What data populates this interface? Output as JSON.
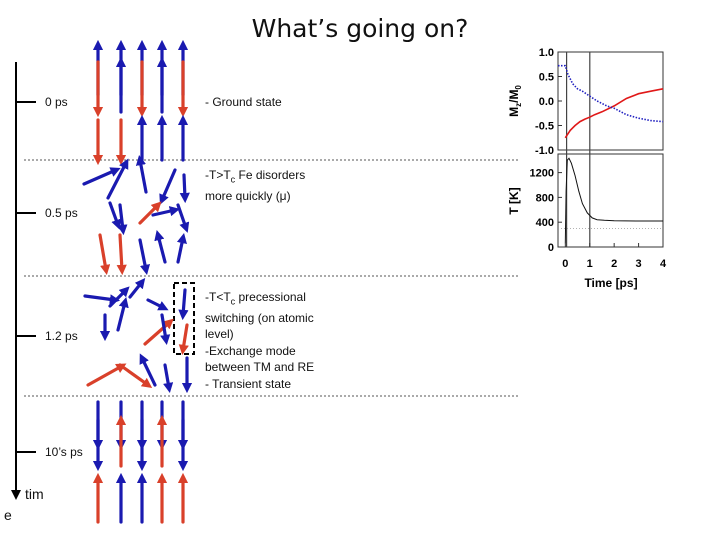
{
  "title": "What’s going on?",
  "timeline": {
    "labels": [
      "0 ps",
      "0.5 ps",
      "1.2 ps",
      "10’s ps"
    ],
    "axis_label_a": "tim",
    "axis_label_b": "e"
  },
  "notes": {
    "ground": "- Ground state",
    "disorder_line1": "-T>T",
    "disorder_sub": "c",
    "disorder_line1_rest": " Fe disorders",
    "disorder_line2": "more quickly (μ)",
    "precess_line1": "-T<T",
    "precess_sub": "c",
    "precess_line1_rest": " precessional",
    "precess_lines": [
      "switching  (on atomic",
      "level)",
      "-Exchange mode",
      "between TM and RE",
      "- Transient state"
    ]
  },
  "colors": {
    "tm_blue": "#1a1ab0",
    "re_red": "#d9402a",
    "mz_red": "#e01818",
    "mz_blue": "#2020c0"
  },
  "chart_data": {
    "type": "line",
    "xlabel": "Time [ps]",
    "x_ticks": [
      "0",
      "1",
      "2",
      "3",
      "4"
    ],
    "xlim": [
      -0.3,
      4
    ],
    "panels": [
      {
        "ylabel_main": "M",
        "ylabel_sub1": "z",
        "ylabel_mid": "/M",
        "ylabel_sub2": "0",
        "y_ticks": [
          "1.0",
          "0.5",
          "0.0",
          "-0.5",
          "-1.0"
        ],
        "ylim": [
          -1.0,
          1.0
        ],
        "series": [
          {
            "color": "red",
            "style": "solid",
            "x": [
              0,
              0.2,
              0.4,
              0.6,
              0.8,
              1.0,
              1.2,
              1.5,
              2.0,
              2.5,
              3.0,
              3.5,
              4.0
            ],
            "values": [
              -0.75,
              -0.6,
              -0.5,
              -0.42,
              -0.37,
              -0.33,
              -0.28,
              -0.22,
              -0.1,
              0.05,
              0.15,
              0.2,
              0.25
            ]
          },
          {
            "color": "blue",
            "style": "dotted",
            "x": [
              -0.3,
              0,
              0.1,
              0.3,
              0.5,
              0.7,
              1.0,
              1.3,
              1.7,
              2.0,
              2.5,
              3.0,
              3.5,
              4.0
            ],
            "values": [
              0.72,
              0.72,
              0.55,
              0.35,
              0.25,
              0.2,
              0.1,
              0.0,
              -0.1,
              -0.15,
              -0.28,
              -0.35,
              -0.4,
              -0.42
            ]
          }
        ]
      },
      {
        "ylabel_main": "T [K]",
        "y_ticks": [
          "1200",
          "800",
          "400",
          "0"
        ],
        "ylim": [
          0,
          1500
        ],
        "series": [
          {
            "color": "black",
            "style": "solid",
            "x": [
              0,
              0.03,
              0.08,
              0.15,
              0.25,
              0.4,
              0.55,
              0.7,
              0.9,
              1.1,
              1.3,
              1.6,
              2.0,
              3.0,
              4.0
            ],
            "values": [
              60,
              900,
              1400,
              1430,
              1350,
              1150,
              900,
              700,
              550,
              470,
              440,
              430,
              425,
              420,
              420
            ]
          },
          {
            "color": "gray",
            "style": "dotted",
            "x": [
              -0.3,
              4.0
            ],
            "values": [
              300,
              300
            ]
          }
        ]
      }
    ]
  }
}
